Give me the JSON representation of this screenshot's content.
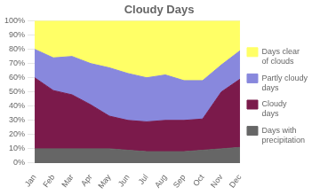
{
  "chart_data": {
    "type": "area",
    "title": "Cloudy Days",
    "categories": [
      "Jan",
      "Feb",
      "Mar",
      "Apr",
      "May",
      "Jun",
      "Jul",
      "Aug",
      "Sep",
      "Oct",
      "Nov",
      "Dec"
    ],
    "series": [
      {
        "name": "Days with\nprecipitation",
        "color": "#666666",
        "values": [
          10,
          10,
          10,
          10,
          10,
          9,
          8,
          8,
          8,
          9,
          10,
          11
        ]
      },
      {
        "name": "Cloudy\ndays",
        "color": "#7b1a4b",
        "values": [
          50,
          41,
          38,
          31,
          23,
          21,
          21,
          22,
          22,
          22,
          40,
          48
        ]
      },
      {
        "name": "Partly cloudy\ndays",
        "color": "#8888dd",
        "values": [
          20,
          23,
          27,
          29,
          34,
          33,
          31,
          32,
          28,
          27,
          19,
          20
        ]
      },
      {
        "name": "Days clear\nof clouds",
        "color": "#ffff66",
        "values": [
          20,
          26,
          25,
          30,
          33,
          37,
          40,
          38,
          42,
          42,
          31,
          21
        ]
      }
    ],
    "ylim": [
      0,
      100
    ],
    "yticks": [
      {
        "value": 0,
        "label": "0%"
      },
      {
        "value": 10,
        "label": "10%"
      },
      {
        "value": 20,
        "label": "20%"
      },
      {
        "value": 30,
        "label": "30%"
      },
      {
        "value": 40,
        "label": "40%"
      },
      {
        "value": 50,
        "label": "50%"
      },
      {
        "value": 60,
        "label": "60%"
      },
      {
        "value": 70,
        "label": "70%"
      },
      {
        "value": 80,
        "label": "80%"
      },
      {
        "value": 90,
        "label": "90%"
      },
      {
        "value": 100,
        "label": "100%"
      }
    ],
    "grid": true,
    "stacked": true,
    "legend": "right"
  }
}
